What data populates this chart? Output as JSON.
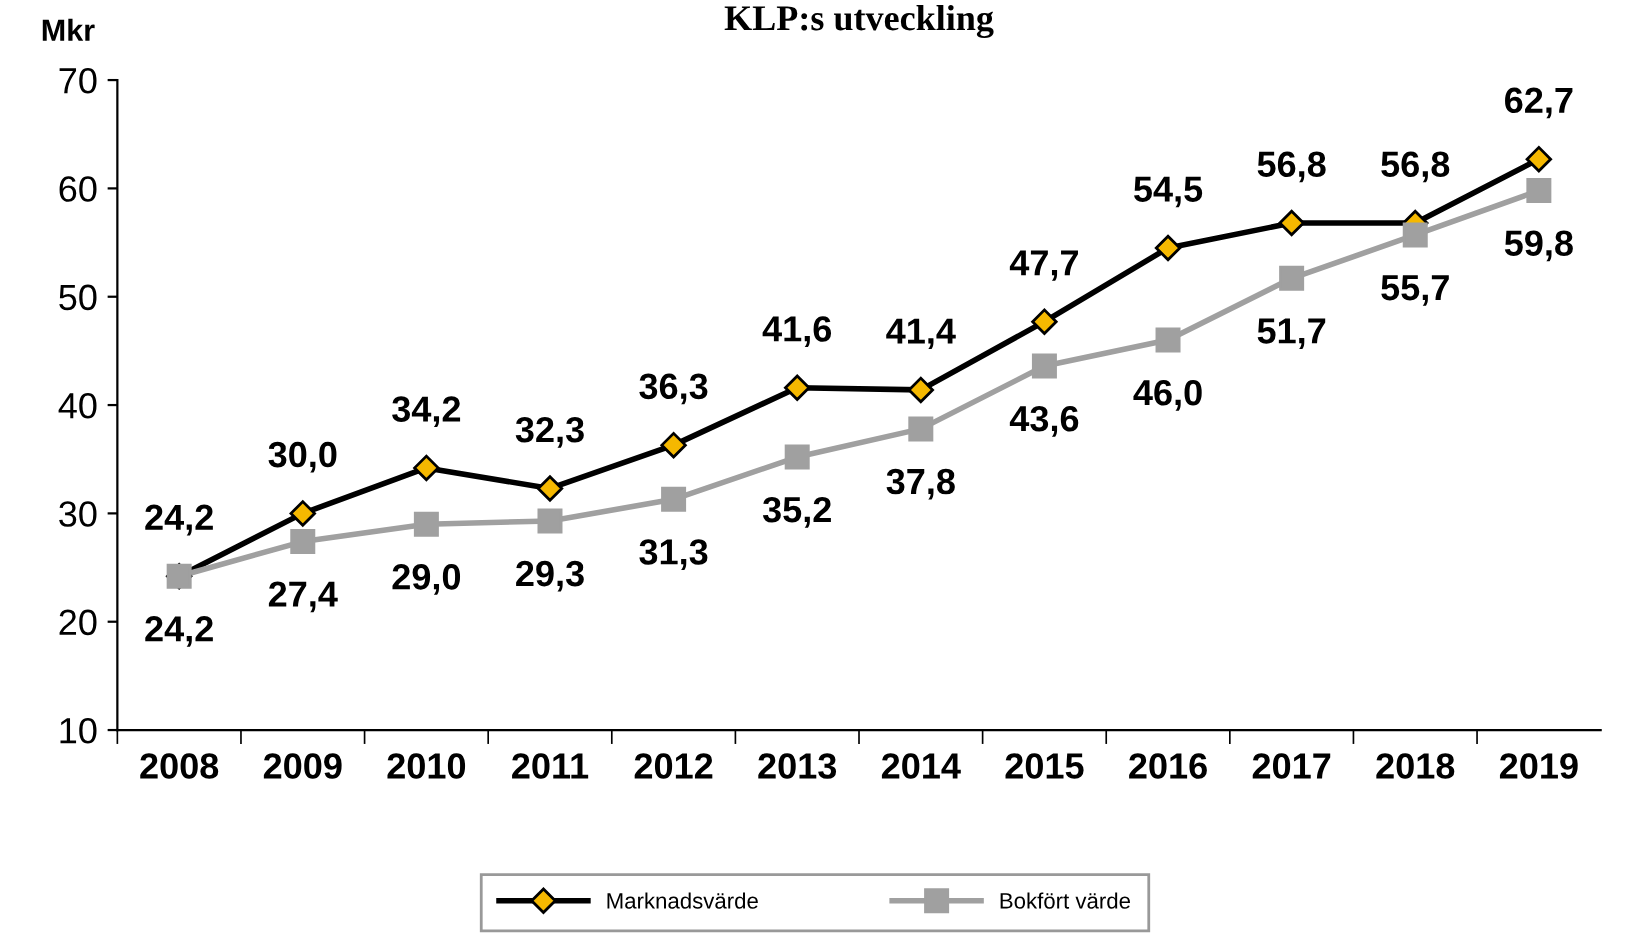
{
  "chart_data": {
    "type": "line",
    "title": "KLP:s utveckling",
    "ylabel": "Mkr",
    "categories": [
      "2008",
      "2009",
      "2010",
      "2011",
      "2012",
      "2013",
      "2014",
      "2015",
      "2016",
      "2017",
      "2018",
      "2019"
    ],
    "series": [
      {
        "name": "Marknadsvärde",
        "color": "#000000",
        "marker": "diamond",
        "colors": [
          "#f5b800",
          "#f5b800",
          "#f5b800",
          "#f5b800",
          "#f5b800",
          "#f5b800",
          "#f5b800",
          "#f5b800",
          "#f5b800",
          "#f5b800",
          "#f5b800",
          "#f5b800"
        ],
        "values": [
          24.2,
          30.0,
          34.2,
          32.3,
          36.3,
          41.6,
          41.4,
          47.7,
          54.5,
          56.8,
          56.8,
          62.7
        ],
        "value_labels": [
          "24,2",
          "30,0",
          "34,2",
          "32,3",
          "36,3",
          "41,6",
          "41,4",
          "47,7",
          "54,5",
          "56,8",
          "56,8",
          "62,7"
        ]
      },
      {
        "name": "Bokfört värde",
        "color": "#a0a0a0",
        "marker": "square",
        "values": [
          24.2,
          27.4,
          29.0,
          29.3,
          31.3,
          35.2,
          37.8,
          43.6,
          46.0,
          51.7,
          55.7,
          59.8
        ],
        "value_labels": [
          "24,2",
          "27,4",
          "29,0",
          "29,3",
          "31,3",
          "35,2",
          "37,8",
          "43,6",
          "46,0",
          "51,7",
          "55,7",
          "59,8"
        ]
      }
    ],
    "ylim": [
      10,
      70
    ],
    "yticks": [
      10,
      20,
      30,
      40,
      50,
      60,
      70
    ],
    "grid": false,
    "legend": "bottom",
    "line_style": "solid"
  }
}
